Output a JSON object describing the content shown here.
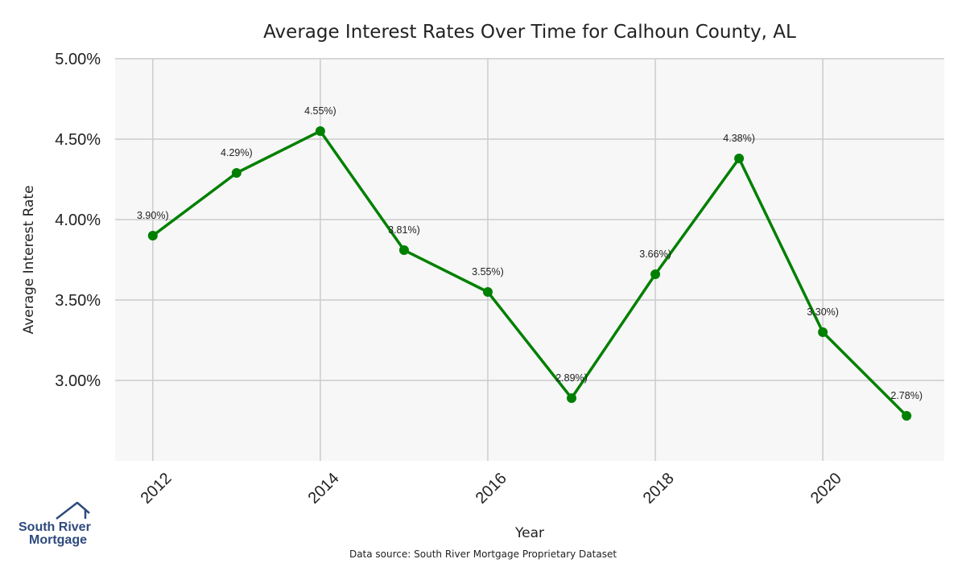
{
  "chart_data": {
    "type": "line",
    "title": "Average Interest Rates Over Time for Calhoun County, AL",
    "xlabel": "Year",
    "ylabel": "Average Interest Rate",
    "x": [
      2012,
      2013,
      2014,
      2015,
      2016,
      2017,
      2018,
      2019,
      2020,
      2021
    ],
    "series": [
      {
        "values": [
          3.9,
          4.29,
          4.55,
          3.81,
          3.55,
          2.89,
          3.66,
          4.38,
          3.3,
          2.78
        ],
        "labels": [
          "3.90%)",
          "4.29%)",
          "4.55%)",
          "3.81%)",
          "3.55%)",
          "2.89%)",
          "3.66%)",
          "4.38%)",
          "3.30%)",
          "2.78%)"
        ],
        "color": "#008000"
      }
    ],
    "xticks": [
      2012,
      2014,
      2016,
      2018,
      2020
    ],
    "xtick_labels": [
      "2012",
      "2014",
      "2016",
      "2018",
      "2020"
    ],
    "yticks": [
      3.0,
      3.5,
      4.0,
      4.5,
      5.0
    ],
    "ytick_labels": [
      "3.00%",
      "3.50%",
      "4.00%",
      "4.50%",
      "5.00%"
    ],
    "ylim": [
      2.5,
      5.0
    ],
    "xlim": [
      2011.55,
      2021.45
    ],
    "grid": true,
    "background_color": "#f7f7f7",
    "grid_color": "#cccccc"
  },
  "footer": {
    "source": "Data source: South River Mortgage Proprietary Dataset"
  },
  "logo": {
    "line1": "South River",
    "line2": "Mortgage",
    "color": "#2e4a7d"
  }
}
